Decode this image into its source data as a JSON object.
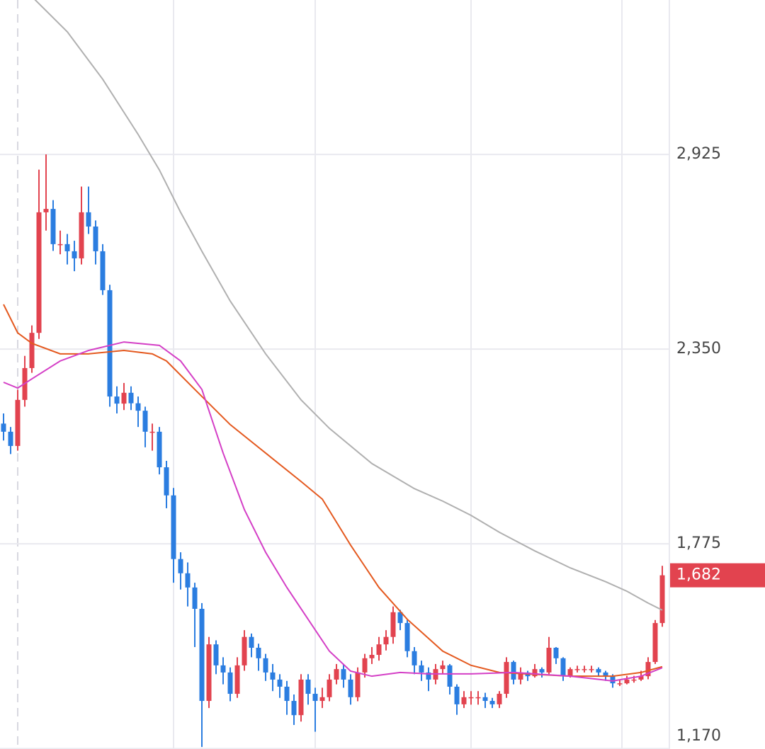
{
  "chart_data": {
    "type": "candlestick",
    "ylim": [
      1169,
      3381
    ],
    "yticks": [
      {
        "value": 2925,
        "label": "2,925"
      },
      {
        "value": 2350,
        "label": "2,350"
      },
      {
        "value": 1775,
        "label": "1,775"
      },
      {
        "value": 1170,
        "label": "1,170"
      }
    ],
    "grid": true,
    "up_color": "#e2434f",
    "down_color": "#2b7de0",
    "open": [
      2130,
      2106,
      2064,
      2200,
      2294,
      2398,
      2754,
      2764,
      2660,
      2660,
      2639,
      2618,
      2754,
      2712,
      2639,
      2524,
      2210,
      2189,
      2221,
      2190,
      2168,
      2106,
      2106,
      2001,
      1918,
      1730,
      1688,
      1646,
      1583,
      1311,
      1478,
      1416,
      1395,
      1332,
      1416,
      1500,
      1468,
      1437,
      1395,
      1374,
      1353,
      1311,
      1269,
      1374,
      1332,
      1311,
      1322,
      1374,
      1405,
      1374,
      1322,
      1395,
      1437,
      1447,
      1478,
      1500,
      1573,
      1541,
      1458,
      1416,
      1395,
      1374,
      1405,
      1416,
      1353,
      1301,
      1322,
      1322,
      1322,
      1311,
      1301,
      1332,
      1426,
      1374,
      1395,
      1384,
      1405,
      1395,
      1468,
      1437,
      1384,
      1405,
      1405,
      1405,
      1405,
      1395,
      1384,
      1363,
      1363,
      1374,
      1374,
      1384,
      1426,
      1541
    ],
    "high": [
      2160,
      2120,
      2230,
      2330,
      2420,
      2880,
      2925,
      2790,
      2700,
      2690,
      2670,
      2830,
      2830,
      2730,
      2660,
      2540,
      2240,
      2250,
      2240,
      2210,
      2180,
      2130,
      2120,
      2020,
      1940,
      1750,
      1720,
      1660,
      1600,
      1500,
      1490,
      1440,
      1410,
      1440,
      1520,
      1510,
      1480,
      1450,
      1420,
      1390,
      1370,
      1330,
      1390,
      1390,
      1350,
      1350,
      1390,
      1420,
      1420,
      1390,
      1410,
      1450,
      1470,
      1500,
      1520,
      1590,
      1580,
      1550,
      1470,
      1430,
      1410,
      1420,
      1430,
      1420,
      1360,
      1340,
      1340,
      1340,
      1335,
      1320,
      1340,
      1440,
      1430,
      1410,
      1400,
      1420,
      1410,
      1500,
      1470,
      1440,
      1410,
      1415,
      1415,
      1415,
      1410,
      1400,
      1390,
      1375,
      1385,
      1385,
      1400,
      1440,
      1550,
      1710
    ],
    "low": [
      2080,
      2040,
      2050,
      2180,
      2280,
      2380,
      2700,
      2640,
      2630,
      2600,
      2580,
      2600,
      2690,
      2600,
      2510,
      2180,
      2160,
      2170,
      2170,
      2120,
      2060,
      2050,
      1980,
      1880,
      1660,
      1640,
      1590,
      1470,
      1175,
      1290,
      1390,
      1360,
      1310,
      1320,
      1400,
      1440,
      1400,
      1370,
      1340,
      1320,
      1270,
      1240,
      1250,
      1300,
      1220,
      1290,
      1310,
      1360,
      1350,
      1300,
      1310,
      1380,
      1420,
      1430,
      1460,
      1480,
      1520,
      1440,
      1390,
      1370,
      1340,
      1360,
      1390,
      1330,
      1270,
      1290,
      1300,
      1300,
      1290,
      1290,
      1290,
      1320,
      1360,
      1360,
      1370,
      1380,
      1380,
      1390,
      1420,
      1370,
      1380,
      1395,
      1395,
      1395,
      1385,
      1370,
      1350,
      1355,
      1360,
      1365,
      1370,
      1375,
      1420,
      1530
    ],
    "close": [
      2106,
      2064,
      2200,
      2294,
      2398,
      2754,
      2764,
      2660,
      2660,
      2639,
      2618,
      2754,
      2712,
      2639,
      2524,
      2210,
      2189,
      2221,
      2190,
      2168,
      2106,
      2106,
      2001,
      1918,
      1730,
      1688,
      1646,
      1583,
      1311,
      1478,
      1416,
      1395,
      1332,
      1416,
      1500,
      1468,
      1437,
      1395,
      1374,
      1353,
      1311,
      1269,
      1374,
      1332,
      1311,
      1322,
      1374,
      1405,
      1374,
      1322,
      1395,
      1437,
      1447,
      1478,
      1500,
      1573,
      1541,
      1458,
      1416,
      1395,
      1374,
      1405,
      1416,
      1353,
      1301,
      1322,
      1322,
      1322,
      1311,
      1301,
      1332,
      1426,
      1374,
      1395,
      1384,
      1405,
      1395,
      1468,
      1437,
      1384,
      1405,
      1405,
      1405,
      1405,
      1395,
      1384,
      1363,
      1363,
      1374,
      1374,
      1384,
      1426,
      1541,
      1682
    ],
    "lines": [
      {
        "color": "#b0b0b0",
        "x": [
          4,
          9,
          14,
          19,
          22,
          25,
          28,
          32,
          37,
          42,
          46,
          52,
          58,
          62,
          66,
          70,
          75,
          80,
          85,
          88,
          91,
          93
        ],
        "values": [
          3391,
          3287,
          3147,
          2984,
          2879,
          2754,
          2639,
          2492,
          2336,
          2200,
          2116,
          2012,
          1938,
          1901,
          1859,
          1809,
          1754,
          1704,
          1663,
          1635,
          1600,
          1579
        ]
      },
      {
        "color": "#e4591f",
        "x": [
          0,
          2,
          4,
          8,
          12,
          17,
          21,
          23,
          27,
          32,
          37,
          42,
          45,
          49,
          53,
          57,
          62,
          66,
          70,
          80,
          86,
          90,
          93
        ],
        "values": [
          2482,
          2398,
          2367,
          2336,
          2336,
          2346,
          2336,
          2315,
          2231,
          2127,
          2043,
          1959,
          1907,
          1771,
          1646,
          1552,
          1458,
          1416,
          1395,
          1384,
          1384,
          1395,
          1412
        ]
      },
      {
        "color": "#d43fc6",
        "x": [
          0,
          2,
          4,
          8,
          12,
          17,
          22,
          25,
          28,
          31,
          34,
          37,
          40,
          43,
          46,
          49,
          52,
          56,
          60,
          66,
          72,
          80,
          86,
          90,
          93
        ],
        "values": [
          2252,
          2235,
          2262,
          2315,
          2346,
          2371,
          2361,
          2315,
          2231,
          2043,
          1876,
          1750,
          1646,
          1552,
          1458,
          1399,
          1384,
          1395,
          1391,
          1391,
          1395,
          1384,
          1370,
          1384,
          1409
        ]
      }
    ],
    "last_price": {
      "value": 1682,
      "label": "1,682"
    }
  }
}
